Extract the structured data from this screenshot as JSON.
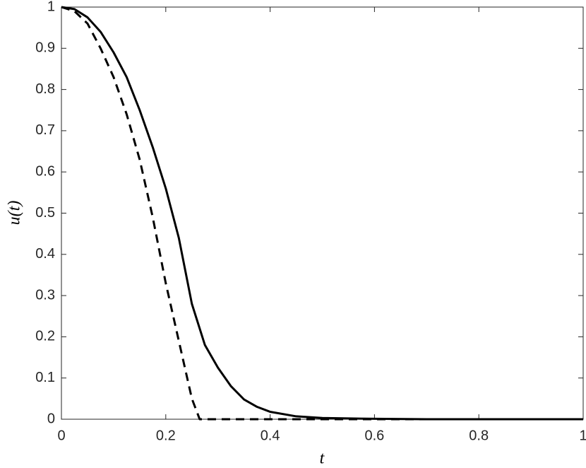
{
  "chart_data": {
    "type": "line",
    "xlabel": "t",
    "ylabel": "u(t)",
    "xlim": [
      0,
      1
    ],
    "ylim": [
      0,
      1
    ],
    "xticks": [
      0,
      0.2,
      0.4,
      0.6,
      0.8,
      1
    ],
    "yticks": [
      0,
      0.1,
      0.2,
      0.3,
      0.4,
      0.5,
      0.6,
      0.7,
      0.8,
      0.9,
      1
    ],
    "grid": false,
    "series": [
      {
        "color": "#000000",
        "line_style": "solid",
        "x": [
          0,
          0.025,
          0.05,
          0.075,
          0.1,
          0.125,
          0.15,
          0.175,
          0.2,
          0.225,
          0.25,
          0.275,
          0.3,
          0.325,
          0.35,
          0.375,
          0.4,
          0.45,
          0.5,
          0.6,
          0.7,
          0.8,
          0.9,
          1
        ],
        "values": [
          1,
          0.995,
          0.975,
          0.94,
          0.89,
          0.83,
          0.75,
          0.66,
          0.56,
          0.44,
          0.28,
          0.18,
          0.125,
          0.08,
          0.048,
          0.03,
          0.018,
          0.007,
          0.003,
          0.001,
          0,
          0,
          0,
          0
        ]
      },
      {
        "color": "#000000",
        "line_style": "dashed",
        "x": [
          0,
          0.025,
          0.05,
          0.075,
          0.1,
          0.125,
          0.15,
          0.175,
          0.2,
          0.225,
          0.25,
          0.265,
          0.3,
          0.4,
          0.5,
          0.6,
          0.7,
          0.8,
          0.9,
          1
        ],
        "values": [
          1,
          0.99,
          0.96,
          0.9,
          0.83,
          0.74,
          0.63,
          0.49,
          0.33,
          0.19,
          0.05,
          0,
          0,
          0,
          0,
          0,
          0,
          0,
          0,
          0
        ]
      }
    ]
  }
}
